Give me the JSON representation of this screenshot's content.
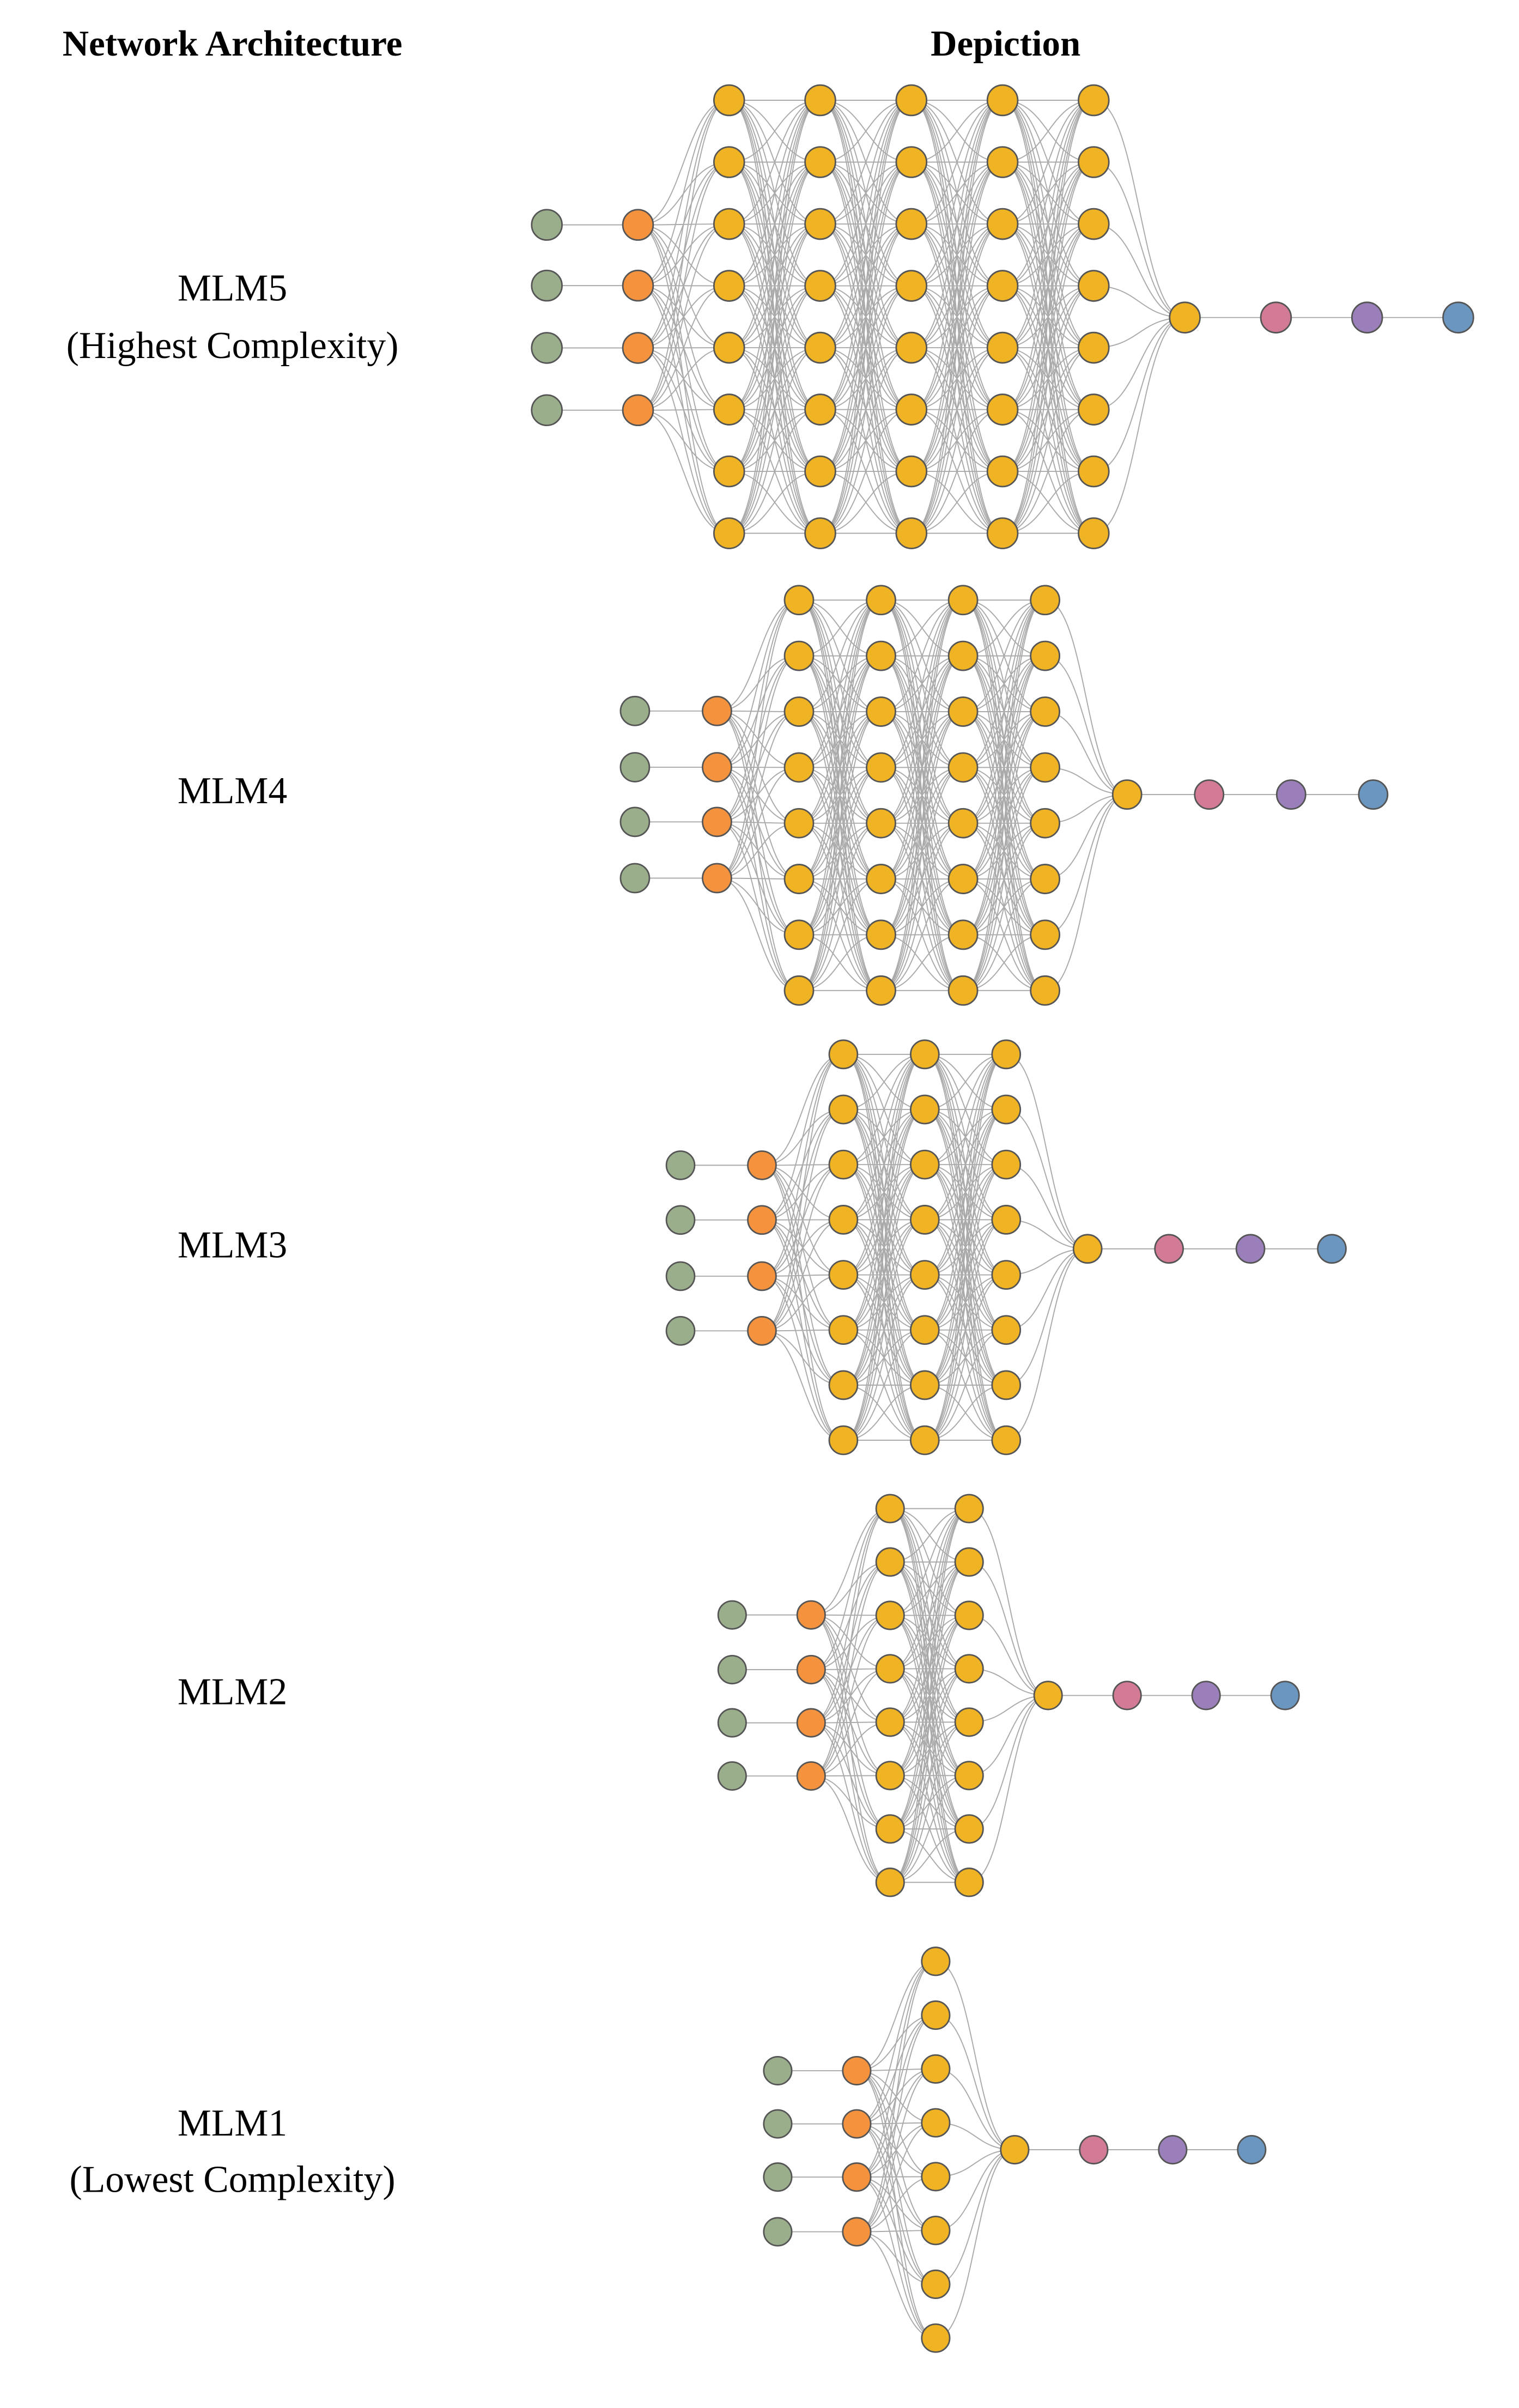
{
  "header": {
    "architecture": "Network Architecture",
    "depiction": "Depiction"
  },
  "rows": [
    {
      "label": "MLM5",
      "note": "(Highest Complexity)"
    },
    {
      "label": "MLM4"
    },
    {
      "label": "MLM3"
    },
    {
      "label": "MLM2"
    },
    {
      "label": "MLM1",
      "note": "(Lowest Complexity)"
    }
  ]
}
